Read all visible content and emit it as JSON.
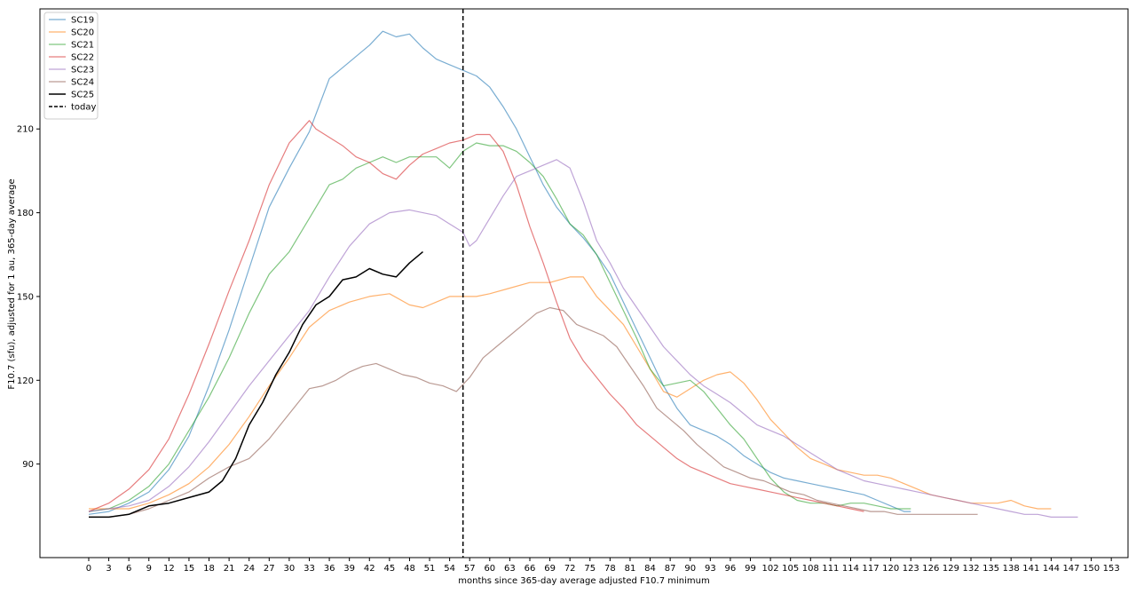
{
  "chart_data": {
    "type": "line",
    "xlabel": "months since 365-day average adjusted F10.7 minimum",
    "ylabel": "F10.7 (sfu), adjusted for 1 au, 365-day average",
    "xlim": [
      -7.3,
      155.5
    ],
    "ylim": [
      56.5,
      253
    ],
    "x_ticks": [
      0,
      3,
      6,
      9,
      12,
      15,
      18,
      21,
      24,
      27,
      30,
      33,
      36,
      39,
      42,
      45,
      48,
      51,
      54,
      57,
      60,
      63,
      66,
      69,
      72,
      75,
      78,
      81,
      84,
      87,
      90,
      93,
      96,
      99,
      102,
      105,
      108,
      111,
      114,
      117,
      120,
      123,
      126,
      129,
      132,
      135,
      138,
      141,
      144,
      147,
      150,
      153
    ],
    "y_ticks": [
      90,
      120,
      150,
      180,
      210
    ],
    "grid": false,
    "legend_position": "top-left",
    "today_x": 56,
    "today_label": "today",
    "series": [
      {
        "name": "SC19",
        "color": "#1f77b4",
        "x": [
          0,
          3,
          6,
          9,
          12,
          15,
          18,
          21,
          24,
          27,
          30,
          33,
          36,
          39,
          42,
          44,
          46,
          48,
          50,
          52,
          54,
          56,
          58,
          60,
          62,
          64,
          66,
          68,
          70,
          72,
          74,
          76,
          78,
          80,
          82,
          84,
          86,
          88,
          90,
          92,
          94,
          96,
          98,
          100,
          102,
          104,
          106,
          108,
          110,
          112,
          114,
          116,
          118,
          120,
          122,
          123
        ],
        "y": [
          72,
          73,
          76,
          80,
          88,
          100,
          118,
          138,
          160,
          182,
          196,
          209,
          228,
          234,
          240,
          245,
          243,
          244,
          239,
          235,
          233,
          231,
          229,
          225,
          218,
          210,
          200,
          190,
          182,
          176,
          171,
          165,
          158,
          148,
          138,
          128,
          118,
          110,
          104,
          102,
          100,
          97,
          93,
          90,
          87,
          85,
          84,
          83,
          82,
          81,
          80,
          79,
          77,
          75,
          73,
          73
        ]
      },
      {
        "name": "SC20",
        "color": "#ff7f0e",
        "x": [
          0,
          3,
          6,
          9,
          12,
          15,
          18,
          21,
          24,
          27,
          30,
          33,
          36,
          39,
          42,
          45,
          48,
          50,
          52,
          54,
          56,
          58,
          60,
          63,
          66,
          69,
          72,
          74,
          76,
          78,
          80,
          82,
          84,
          86,
          88,
          90,
          92,
          94,
          96,
          98,
          100,
          102,
          104,
          106,
          108,
          110,
          112,
          114,
          116,
          118,
          120,
          122,
          124,
          126,
          128,
          130,
          132,
          134,
          136,
          138,
          140,
          142,
          144
        ],
        "y": [
          74,
          74,
          74,
          76,
          79,
          83,
          89,
          97,
          107,
          118,
          128,
          139,
          145,
          148,
          150,
          151,
          147,
          146,
          148,
          150,
          150,
          150,
          151,
          153,
          155,
          155,
          157,
          157,
          150,
          145,
          140,
          132,
          124,
          116,
          114,
          117,
          120,
          122,
          123,
          119,
          113,
          106,
          101,
          96,
          92,
          90,
          88,
          87,
          86,
          86,
          85,
          83,
          81,
          79,
          78,
          77,
          76,
          76,
          76,
          77,
          75,
          74,
          74
        ]
      },
      {
        "name": "SC21",
        "color": "#2ca02c",
        "x": [
          0,
          3,
          6,
          9,
          12,
          15,
          18,
          21,
          24,
          27,
          30,
          33,
          36,
          38,
          40,
          42,
          44,
          46,
          48,
          50,
          52,
          54,
          56,
          58,
          60,
          62,
          64,
          66,
          68,
          70,
          72,
          74,
          76,
          78,
          80,
          82,
          84,
          86,
          88,
          90,
          92,
          94,
          96,
          98,
          100,
          102,
          104,
          106,
          108,
          110,
          112,
          114,
          116,
          118,
          120,
          122,
          123
        ],
        "y": [
          73,
          74,
          77,
          82,
          90,
          102,
          114,
          128,
          144,
          158,
          166,
          178,
          190,
          192,
          196,
          198,
          200,
          198,
          200,
          200,
          200,
          196,
          202,
          205,
          204,
          204,
          202,
          198,
          193,
          185,
          176,
          172,
          165,
          155,
          145,
          135,
          124,
          118,
          119,
          120,
          116,
          110,
          104,
          99,
          92,
          85,
          80,
          77,
          76,
          76,
          75,
          76,
          76,
          75,
          74,
          74,
          74
        ]
      },
      {
        "name": "SC22",
        "color": "#d62728",
        "x": [
          0,
          3,
          6,
          9,
          12,
          15,
          18,
          21,
          24,
          27,
          30,
          33,
          34,
          36,
          38,
          40,
          42,
          44,
          46,
          48,
          50,
          52,
          54,
          56,
          58,
          60,
          62,
          64,
          66,
          68,
          70,
          72,
          74,
          76,
          78,
          80,
          82,
          84,
          86,
          88,
          90,
          92,
          94,
          96,
          98,
          100,
          102,
          104,
          106,
          108,
          110,
          112,
          114,
          116
        ],
        "y": [
          73,
          76,
          81,
          88,
          99,
          115,
          133,
          152,
          170,
          190,
          205,
          213,
          210,
          207,
          204,
          200,
          198,
          194,
          192,
          197,
          201,
          203,
          205,
          206,
          208,
          208,
          202,
          190,
          175,
          162,
          148,
          135,
          127,
          121,
          115,
          110,
          104,
          100,
          96,
          92,
          89,
          87,
          85,
          83,
          82,
          81,
          80,
          79,
          78,
          77,
          76,
          75,
          74,
          73
        ]
      },
      {
        "name": "SC23",
        "color": "#9467bd",
        "x": [
          0,
          3,
          6,
          9,
          12,
          15,
          18,
          21,
          24,
          27,
          30,
          33,
          36,
          39,
          42,
          45,
          48,
          50,
          52,
          54,
          56,
          57,
          58,
          60,
          62,
          64,
          66,
          68,
          70,
          72,
          74,
          76,
          78,
          80,
          82,
          84,
          86,
          88,
          90,
          92,
          94,
          96,
          98,
          100,
          102,
          104,
          106,
          108,
          110,
          112,
          114,
          116,
          118,
          120,
          122,
          124,
          126,
          128,
          130,
          132,
          134,
          136,
          138,
          140,
          142,
          144,
          146,
          148
        ],
        "y": [
          73,
          74,
          75,
          77,
          82,
          89,
          98,
          108,
          118,
          127,
          136,
          145,
          157,
          168,
          176,
          180,
          181,
          180,
          179,
          176,
          173,
          168,
          170,
          178,
          186,
          193,
          195,
          197,
          199,
          196,
          184,
          170,
          162,
          153,
          146,
          139,
          132,
          127,
          122,
          118,
          115,
          112,
          108,
          104,
          102,
          100,
          97,
          94,
          91,
          88,
          86,
          84,
          83,
          82,
          81,
          80,
          79,
          78,
          77,
          76,
          75,
          74,
          73,
          72,
          72,
          71,
          71,
          71
        ]
      },
      {
        "name": "SC24",
        "color": "#8c564b",
        "x": [
          0,
          3,
          6,
          9,
          12,
          15,
          18,
          21,
          24,
          27,
          30,
          33,
          35,
          37,
          39,
          41,
          43,
          45,
          47,
          49,
          51,
          53,
          55,
          57,
          59,
          61,
          63,
          65,
          67,
          69,
          71,
          73,
          75,
          77,
          79,
          81,
          83,
          85,
          87,
          89,
          91,
          93,
          95,
          97,
          99,
          101,
          103,
          105,
          107,
          109,
          111,
          113,
          115,
          117,
          119,
          121,
          123,
          125,
          127,
          129,
          131,
          133
        ],
        "y": [
          71,
          71,
          72,
          74,
          77,
          80,
          85,
          89,
          92,
          99,
          108,
          117,
          118,
          120,
          123,
          125,
          126,
          124,
          122,
          121,
          119,
          118,
          116,
          121,
          128,
          132,
          136,
          140,
          144,
          146,
          145,
          140,
          138,
          136,
          132,
          125,
          118,
          110,
          106,
          102,
          97,
          93,
          89,
          87,
          85,
          84,
          82,
          80,
          79,
          77,
          76,
          75,
          74,
          73,
          73,
          72,
          72,
          72,
          72,
          72,
          72,
          72
        ]
      },
      {
        "name": "SC25",
        "color": "#000000",
        "x": [
          0,
          3,
          6,
          9,
          12,
          15,
          18,
          20,
          22,
          24,
          26,
          28,
          30,
          32,
          34,
          36,
          38,
          40,
          42,
          44,
          46,
          48,
          50
        ],
        "y": [
          71,
          71,
          72,
          75,
          76,
          78,
          80,
          84,
          92,
          104,
          112,
          122,
          130,
          140,
          147,
          150,
          156,
          157,
          160,
          158,
          157,
          162,
          166
        ]
      }
    ]
  }
}
